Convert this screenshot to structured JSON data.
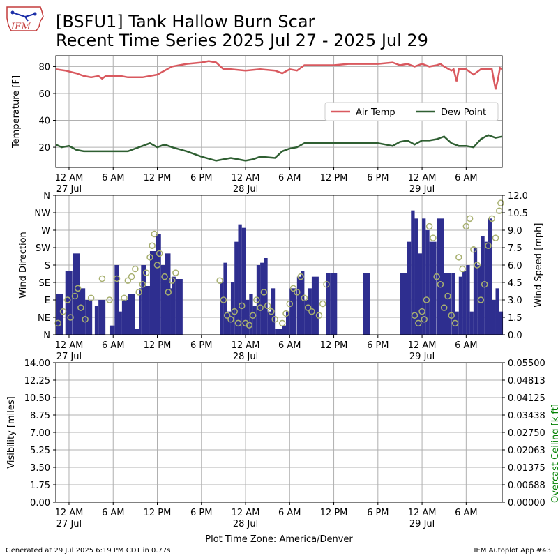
{
  "header": {
    "title_line1": "[BSFU1] Tank Hallow Burn Scar",
    "title_line2": "Recent Time Series 2025 Jul 27 - 2025 Jul 29",
    "logo_text": "IEM"
  },
  "footer": {
    "generated": "Generated at 29 Jul 2025 6:19 PM CDT in 0.77s",
    "app": "IEM Autoplot App #43"
  },
  "colors": {
    "air_temp": "#d9595f",
    "dew_point": "#2f5f32",
    "wind_speed": "#2e2e8f",
    "wind_dir": "#a8b070",
    "overcast": "#008000",
    "grid": "#b0b0b0"
  },
  "time_axis": {
    "tick_labels": [
      "12 AM",
      "6 AM",
      "12 PM",
      "6 PM",
      "12 AM",
      "6 AM",
      "12 PM",
      "6 PM",
      "12 AM",
      "6 AM"
    ],
    "tick_hours": [
      0,
      6,
      12,
      18,
      24,
      30,
      36,
      42,
      48,
      54
    ],
    "date_labels": [
      "27 Jul",
      "28 Jul",
      "29 Jul"
    ],
    "date_hours": [
      0,
      24,
      48
    ],
    "xlim_hours": [
      -1.8,
      58.9
    ],
    "xlabel": "Plot Time Zone: America/Denver"
  },
  "chart_data": [
    {
      "type": "line",
      "ylabel": "Temperature [F]",
      "ylim": [
        5,
        88
      ],
      "yticks": [
        20,
        40,
        60,
        80
      ],
      "grid": true,
      "legend_placement": "center-right",
      "series": [
        {
          "name": "Air Temp",
          "x": [
            -1.8,
            -0.5,
            1,
            2,
            3,
            4,
            4.5,
            5,
            6,
            7,
            8,
            9,
            10,
            12,
            14,
            16,
            18,
            19,
            20,
            21,
            22,
            24,
            26,
            28,
            29,
            30,
            31,
            32,
            34,
            36,
            38,
            40,
            42,
            44,
            45,
            46,
            47,
            48,
            49,
            50,
            50.5,
            51,
            52,
            52.3,
            52.7,
            53,
            54,
            55,
            56,
            57,
            57.5,
            58,
            58.3,
            58.6,
            58.9
          ],
          "y": [
            78,
            77,
            75,
            73,
            72,
            73,
            71,
            73,
            73,
            73,
            72,
            72,
            72,
            74,
            80,
            82,
            83,
            84,
            83,
            78,
            78,
            77,
            78,
            77,
            75,
            78,
            77,
            81,
            81,
            81,
            82,
            82,
            82,
            83,
            81,
            82,
            80,
            82,
            80,
            81,
            82,
            80,
            77,
            78,
            69,
            78,
            78,
            74,
            78,
            78,
            78,
            63,
            70,
            79,
            78
          ]
        },
        {
          "name": "Dew Point",
          "x": [
            -1.8,
            -1,
            0,
            1,
            2,
            4,
            6,
            8,
            9,
            10,
            11,
            12,
            13,
            14,
            16,
            18,
            20,
            21,
            22,
            23,
            24,
            25,
            26,
            28,
            29,
            30,
            31,
            32,
            33,
            34,
            36,
            38,
            40,
            42,
            43,
            44,
            45,
            46,
            47,
            48,
            49,
            50,
            51,
            52,
            53,
            54,
            55,
            56,
            57,
            58,
            58.9
          ],
          "y": [
            22,
            20,
            21,
            18,
            17,
            17,
            17,
            17,
            19,
            21,
            23,
            20,
            22,
            20,
            17,
            13,
            10,
            11,
            12,
            11,
            10,
            11,
            13,
            12,
            17,
            19,
            20,
            23,
            23,
            23,
            23,
            23,
            23,
            23,
            22,
            21,
            24,
            25,
            22,
            25,
            25,
            26,
            28,
            23,
            21,
            21,
            20,
            26,
            29,
            27,
            28
          ]
        }
      ]
    },
    {
      "type": "bar",
      "ylabel": "Wind Direction",
      "y2label": "Wind Speed [mph]",
      "ylim": [
        0,
        360
      ],
      "yticks": [
        0,
        45,
        90,
        135,
        180,
        225,
        270,
        315,
        360
      ],
      "ytick_labels": [
        "N",
        "NE",
        "E",
        "SE",
        "S",
        "SW",
        "W",
        "NW",
        "N"
      ],
      "y2lim": [
        0,
        12
      ],
      "y2ticks": [
        0,
        1.5,
        3,
        4.5,
        6,
        7.5,
        9,
        10.5,
        12
      ],
      "y2tick_labels": [
        "0.0",
        "1.5",
        "3.0",
        "4.5",
        "6.0",
        "7.5",
        "9.0",
        "10.5",
        "12.0"
      ],
      "grid": true,
      "wind_speed": {
        "x": [
          -1.8,
          -0.5,
          0.5,
          1.5,
          2.2,
          3.5,
          4,
          5.5,
          6.2,
          6.8,
          7.2,
          8,
          9,
          9.5,
          9.8,
          10.5,
          11,
          11.8,
          12.5,
          13,
          13.8,
          14,
          14.5,
          20.5,
          21,
          21.5,
          22,
          22.5,
          23,
          23.5,
          24,
          24.5,
          25,
          25.5,
          26,
          26.5,
          27,
          27.5,
          28,
          29,
          29.5,
          30,
          31,
          31.5,
          32,
          32.5,
          33,
          34,
          34.5,
          35,
          35.5,
          40,
          45,
          46,
          46.5,
          47,
          47.5,
          48,
          48.5,
          49,
          50,
          51,
          52,
          52.5,
          53,
          53.5,
          54,
          54.5,
          55,
          55.5,
          56,
          56.5,
          57,
          57.5,
          58,
          58.5
        ],
        "y": [
          3.5,
          5.5,
          7,
          4,
          3,
          2.5,
          3,
          0.8,
          6,
          2,
          3,
          3.5,
          0.5,
          4,
          6,
          4.2,
          7.2,
          8.7,
          6,
          7,
          4,
          5,
          4.8,
          4.5,
          6.2,
          2,
          4.5,
          8,
          9.5,
          9.2,
          3,
          3.5,
          2.5,
          6,
          6.2,
          6.6,
          2,
          4,
          0.5,
          0.8,
          2,
          4,
          5,
          5.5,
          3,
          4,
          5,
          0,
          0,
          5.3,
          5.3,
          5.3,
          5.3,
          8,
          10.7,
          10,
          7,
          10,
          9,
          8,
          10,
          5.3,
          5.3,
          2,
          5,
          5.5,
          6,
          2,
          7.5,
          6,
          8.5,
          8,
          10,
          3,
          4,
          2
        ]
      },
      "wind_direction": {
        "x": [
          -1.5,
          -0.8,
          -0.2,
          0.2,
          0.8,
          1.2,
          1.6,
          2.2,
          3,
          4.5,
          5.5,
          6.5,
          7.5,
          8,
          8.5,
          9,
          9.5,
          10,
          10.5,
          11,
          11.3,
          11.6,
          12,
          12.3,
          13,
          13.5,
          14,
          14.5,
          20.5,
          21,
          21.5,
          22,
          22.5,
          23,
          23.5,
          24,
          24.5,
          25,
          25.5,
          26,
          26.5,
          27,
          27.5,
          28,
          29,
          29.5,
          30,
          30.5,
          31,
          31.5,
          32,
          32.5,
          33,
          34,
          34.5,
          35,
          47,
          47.5,
          48,
          48.3,
          48.6,
          49,
          49.5,
          50,
          50.5,
          51,
          51.5,
          52,
          52.5,
          53,
          53.5,
          54,
          54.5,
          55,
          55.5,
          56,
          56.5,
          57,
          57.5,
          58,
          58.5,
          58.7
        ],
        "y": [
          30,
          60,
          90,
          45,
          100,
          120,
          70,
          40,
          95,
          145,
          90,
          145,
          95,
          140,
          150,
          170,
          110,
          130,
          160,
          200,
          230,
          260,
          180,
          210,
          150,
          110,
          140,
          160,
          140,
          90,
          50,
          40,
          60,
          30,
          75,
          30,
          25,
          50,
          90,
          70,
          110,
          75,
          60,
          40,
          30,
          55,
          80,
          120,
          110,
          150,
          95,
          70,
          60,
          50,
          80,
          130,
          50,
          30,
          60,
          40,
          90,
          280,
          250,
          150,
          130,
          70,
          100,
          50,
          30,
          200,
          170,
          280,
          300,
          220,
          180,
          90,
          130,
          230,
          300,
          250,
          320,
          340
        ]
      }
    },
    {
      "type": "line",
      "ylabel": "Visibility [miles]",
      "y2label": "Overcast Ceiling [k ft]",
      "ylim": [
        0,
        14
      ],
      "yticks": [
        0,
        1.75,
        3.5,
        5.25,
        7,
        8.75,
        10.5,
        12.25,
        14
      ],
      "ytick_labels": [
        "0.00",
        "1.75",
        "3.50",
        "5.25",
        "7.00",
        "8.75",
        "10.50",
        "12.25",
        "14.00"
      ],
      "y2lim": [
        0,
        0.055
      ],
      "y2tick_labels": [
        "0.00000",
        "0.00688",
        "0.01375",
        "0.02063",
        "0.02750",
        "0.03438",
        "0.04125",
        "0.04813",
        "0.05500"
      ],
      "grid": true,
      "series": []
    }
  ]
}
